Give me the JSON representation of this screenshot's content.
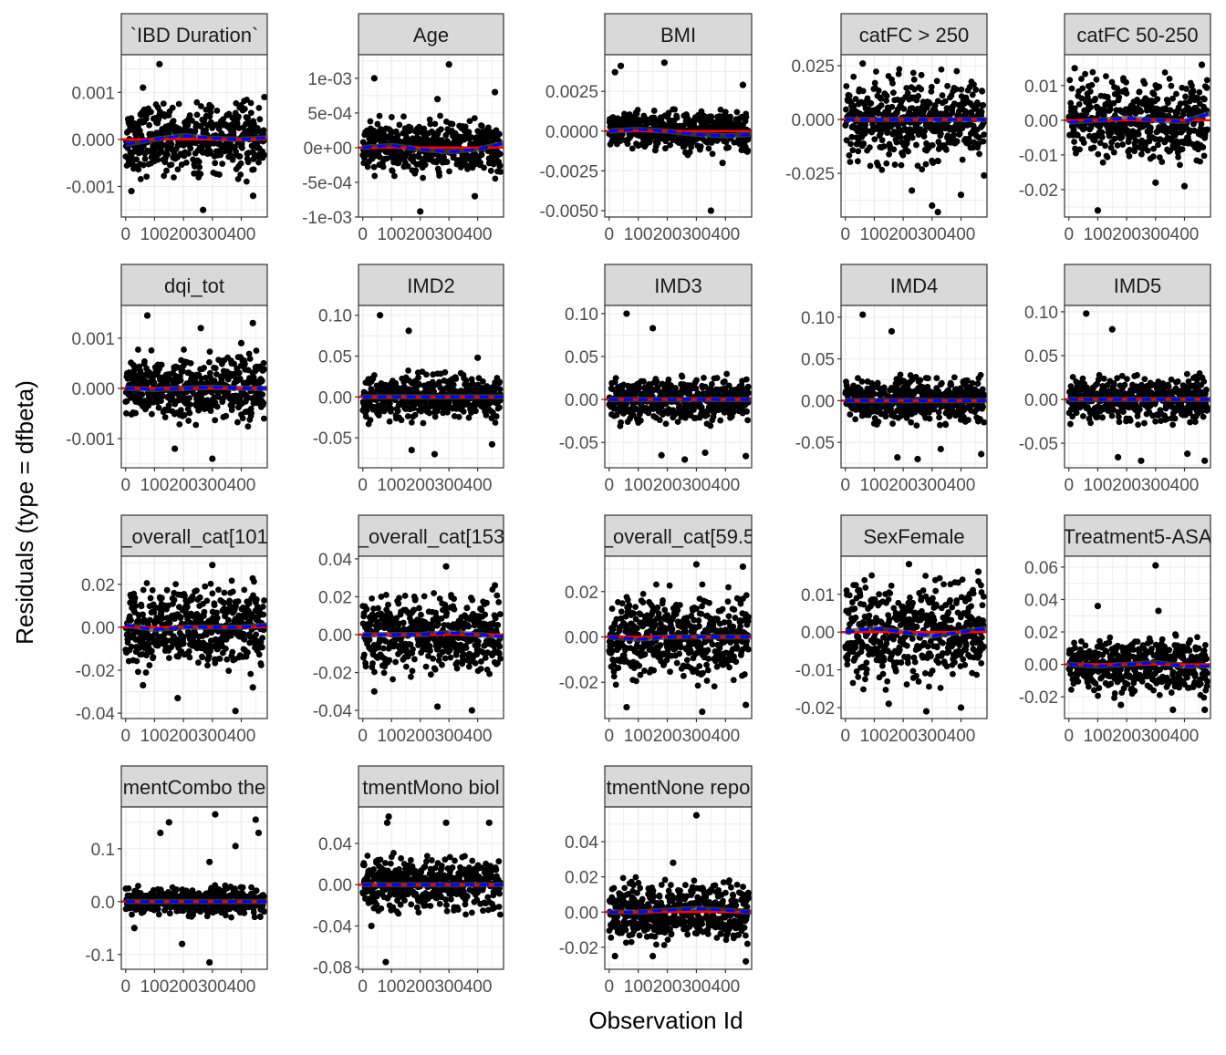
{
  "chart_data": {
    "type": "scatter",
    "xlabel": "Observation Id",
    "ylabel": "Residuals (type = dfbeta)",
    "xlim": [
      -15,
      490
    ],
    "xticks": [
      0,
      100,
      200,
      300,
      400
    ],
    "xtick_labels": [
      "0",
      "100",
      "200",
      "300",
      "400"
    ],
    "n_points": 480,
    "colors": {
      "points": "#000000",
      "zero_line": "#ff0000",
      "smooth": "#0000ff",
      "band": "#444444",
      "strip": "#d9d9d9"
    },
    "panels": [
      {
        "label": "`IBD Duration`",
        "ylim": [
          -0.00165,
          0.0018
        ],
        "ticks": [
          0.001,
          0,
          -0.001
        ],
        "tick_labels": [
          "0.001",
          "0.000",
          "-0.001"
        ],
        "sd": 0.00035,
        "smooth": [
          -0.0001,
          0,
          8e-05,
          2e-05,
          0,
          3e-05
        ],
        "outliers": [
          [
            117,
            0.0016
          ],
          [
            60,
            0.0011
          ],
          [
            441,
            -0.0012
          ],
          [
            268,
            -0.0015
          ],
          [
            20,
            -0.0011
          ],
          [
            480,
            0.0009
          ]
        ]
      },
      {
        "label": "Age",
        "ylim": [
          -0.001,
          0.00134
        ],
        "ticks": [
          0.001,
          0.0005,
          0,
          -0.0005,
          -0.001
        ],
        "tick_labels": [
          "1e-03",
          "5e-04",
          "0e+00",
          "-5e-04",
          "-1e-03"
        ],
        "sd": 0.00018,
        "smooth": [
          0,
          3e-05,
          -2e-05,
          -6e-05,
          -2e-05,
          6e-05
        ],
        "outliers": [
          [
            40,
            0.001
          ],
          [
            300,
            0.0012
          ],
          [
            200,
            -0.00092
          ],
          [
            390,
            -0.0007
          ],
          [
            460,
            0.0008
          ],
          [
            260,
            0.0007
          ]
        ]
      },
      {
        "label": "BMI",
        "ylim": [
          -0.0054,
          0.0048
        ],
        "ticks": [
          0.0025,
          0,
          -0.0025,
          -0.005
        ],
        "tick_labels": [
          "0.0025",
          "0.0000",
          "-0.0025",
          "-0.0050"
        ],
        "sd": 0.0006,
        "smooth": [
          0,
          0.0001,
          0,
          -0.0002,
          -0.0003,
          -0.0002
        ],
        "outliers": [
          [
            190,
            0.0043
          ],
          [
            40,
            0.0041
          ],
          [
            350,
            -0.005
          ],
          [
            460,
            0.0029
          ],
          [
            390,
            -0.002
          ],
          [
            20,
            0.0037
          ]
        ]
      },
      {
        "label": "catFC > 250",
        "ylim": [
          -0.0453,
          0.0301
        ],
        "ticks": [
          0.025,
          0,
          -0.025
        ],
        "tick_labels": [
          "0.025",
          "0.000",
          "-0.025"
        ],
        "sd": 0.009,
        "smooth": [
          0,
          0,
          0,
          0,
          0,
          0
        ],
        "outliers": [
          [
            300,
            -0.04
          ],
          [
            320,
            -0.043
          ],
          [
            400,
            -0.035
          ],
          [
            230,
            -0.033
          ],
          [
            60,
            0.026
          ],
          [
            480,
            -0.026
          ]
        ]
      },
      {
        "label": "catFC 50-250",
        "ylim": [
          -0.0279,
          0.0189
        ],
        "ticks": [
          0.01,
          0,
          -0.01,
          -0.02
        ],
        "tick_labels": [
          "0.01",
          "0.00",
          "-0.01",
          "-0.02"
        ],
        "sd": 0.0055,
        "smooth": [
          -0.0005,
          0,
          0.0005,
          0,
          -0.0003,
          0.002
        ],
        "outliers": [
          [
            100,
            -0.026
          ],
          [
            400,
            -0.019
          ],
          [
            460,
            0.016
          ],
          [
            20,
            0.015
          ],
          [
            300,
            -0.018
          ]
        ]
      },
      {
        "label": "dqi_tot",
        "ylim": [
          -0.00158,
          0.00165
        ],
        "ticks": [
          0.001,
          0,
          -0.001
        ],
        "tick_labels": [
          "0.001",
          "0.000",
          "-0.001"
        ],
        "sd": 0.0003,
        "smooth": [
          0,
          -2e-05,
          0,
          2e-05,
          0,
          0
        ],
        "outliers": [
          [
            75,
            0.00145
          ],
          [
            300,
            -0.0014
          ],
          [
            260,
            0.0012
          ],
          [
            440,
            0.0013
          ],
          [
            170,
            -0.0012
          ],
          [
            400,
            0.0009
          ]
        ]
      },
      {
        "label": "IMD2",
        "ylim": [
          -0.0867,
          0.112
        ],
        "ticks": [
          0.1,
          0.05,
          0,
          -0.05
        ],
        "tick_labels": [
          "0.10",
          "0.05",
          "0.00",
          "-0.05"
        ],
        "sd": 0.013,
        "smooth": [
          0,
          0,
          0,
          0,
          0,
          0
        ],
        "outliers": [
          [
            60,
            0.1
          ],
          [
            160,
            0.081
          ],
          [
            170,
            -0.065
          ],
          [
            250,
            -0.07
          ],
          [
            450,
            -0.058
          ],
          [
            400,
            0.048
          ]
        ]
      },
      {
        "label": "IMD3",
        "ylim": [
          -0.0796,
          0.1095
        ],
        "ticks": [
          0.1,
          0.05,
          0,
          -0.05
        ],
        "tick_labels": [
          "0.10",
          "0.05",
          "0.00",
          "-0.05"
        ],
        "sd": 0.012,
        "smooth": [
          0,
          0,
          0,
          0,
          0,
          0
        ],
        "outliers": [
          [
            60,
            0.1
          ],
          [
            150,
            0.083
          ],
          [
            260,
            -0.07
          ],
          [
            470,
            -0.066
          ],
          [
            330,
            -0.062
          ],
          [
            180,
            -0.065
          ]
        ]
      },
      {
        "label": "IMD4",
        "ylim": [
          -0.0804,
          0.114
        ],
        "ticks": [
          0.1,
          0.05,
          0,
          -0.05
        ],
        "tick_labels": [
          "0.10",
          "0.05",
          "0.00",
          "-0.05"
        ],
        "sd": 0.012,
        "smooth": [
          0,
          0,
          0,
          0,
          0,
          0
        ],
        "outliers": [
          [
            60,
            0.103
          ],
          [
            160,
            0.083
          ],
          [
            250,
            -0.07
          ],
          [
            470,
            -0.064
          ],
          [
            330,
            -0.058
          ],
          [
            180,
            -0.068
          ]
        ]
      },
      {
        "label": "IMD5",
        "ylim": [
          -0.078,
          0.1072
        ],
        "ticks": [
          0.1,
          0.05,
          0,
          -0.05
        ],
        "tick_labels": [
          "0.10",
          "0.05",
          "0.00",
          "-0.05"
        ],
        "sd": 0.012,
        "smooth": [
          0,
          0,
          0,
          0,
          0,
          0
        ],
        "outliers": [
          [
            60,
            0.098
          ],
          [
            150,
            0.08
          ],
          [
            250,
            -0.07
          ],
          [
            470,
            -0.07
          ],
          [
            410,
            -0.062
          ],
          [
            170,
            -0.066
          ]
        ]
      },
      {
        "label": "_overall_cat[101",
        "ylim": [
          -0.0425,
          0.0331
        ],
        "ticks": [
          0.02,
          0,
          -0.02,
          -0.04
        ],
        "tick_labels": [
          "0.02",
          "0.00",
          "-0.02",
          "-0.04"
        ],
        "sd": 0.009,
        "smooth": [
          0.001,
          -0.001,
          0,
          0,
          0,
          0.001
        ],
        "outliers": [
          [
            300,
            0.029
          ],
          [
            380,
            -0.039
          ],
          [
            180,
            -0.033
          ],
          [
            60,
            -0.027
          ],
          [
            440,
            -0.028
          ]
        ]
      },
      {
        "label": "_overall_cat[153",
        "ylim": [
          -0.0443,
          0.0414
        ],
        "ticks": [
          0.04,
          0.02,
          0,
          -0.02,
          -0.04
        ],
        "tick_labels": [
          "0.04",
          "0.02",
          "0.00",
          "-0.02",
          "-0.04"
        ],
        "sd": 0.0095,
        "smooth": [
          0,
          0,
          0,
          0.001,
          0,
          -0.001
        ],
        "outliers": [
          [
            290,
            0.036
          ],
          [
            380,
            -0.04
          ],
          [
            260,
            -0.038
          ],
          [
            460,
            0.026
          ],
          [
            40,
            -0.03
          ]
        ]
      },
      {
        "label": "_overall_cat[59.5",
        "ylim": [
          -0.036,
          0.0356
        ],
        "ticks": [
          0.02,
          0,
          -0.02
        ],
        "tick_labels": [
          "0.02",
          "0.00",
          "-0.02"
        ],
        "sd": 0.009,
        "smooth": [
          0,
          -0.001,
          0,
          0,
          0,
          0
        ],
        "outliers": [
          [
            300,
            0.032
          ],
          [
            460,
            0.031
          ],
          [
            320,
            -0.033
          ],
          [
            60,
            -0.031
          ],
          [
            470,
            -0.03
          ]
        ]
      },
      {
        "label": "SexFemale",
        "ylim": [
          -0.0229,
          0.0201
        ],
        "ticks": [
          0.01,
          0,
          -0.01,
          -0.02
        ],
        "tick_labels": [
          "0.01",
          "0.00",
          "-0.01",
          "-0.02"
        ],
        "sd": 0.006,
        "smooth": [
          0,
          0.001,
          0,
          -0.001,
          0,
          0.001
        ],
        "outliers": [
          [
            220,
            0.018
          ],
          [
            280,
            -0.021
          ],
          [
            400,
            -0.02
          ],
          [
            150,
            -0.019
          ],
          [
            460,
            0.016
          ]
        ]
      },
      {
        "label": "Treatment5-ASA",
        "ylim": [
          -0.0334,
          0.0667
        ],
        "ticks": [
          0.06,
          0.04,
          0.02,
          0,
          -0.02
        ],
        "tick_labels": [
          "0.06",
          "0.04",
          "0.02",
          "0.00",
          "-0.02"
        ],
        "sd": 0.008,
        "smooth": [
          0,
          -0.001,
          0,
          0.001,
          -0.001,
          -0.001
        ],
        "outliers": [
          [
            300,
            0.061
          ],
          [
            100,
            0.036
          ],
          [
            310,
            0.033
          ],
          [
            360,
            -0.028
          ],
          [
            470,
            -0.028
          ],
          [
            180,
            -0.025
          ]
        ]
      },
      {
        "label": "mentCombo the",
        "ylim": [
          -0.128,
          0.179
        ],
        "ticks": [
          0.1,
          0,
          -0.1
        ],
        "tick_labels": [
          "0.1",
          "0.0",
          "-0.1"
        ],
        "sd": 0.012,
        "smooth": [
          0,
          0,
          0,
          0,
          0,
          0
        ],
        "outliers": [
          [
            150,
            0.15
          ],
          [
            120,
            0.13
          ],
          [
            310,
            0.165
          ],
          [
            450,
            0.155
          ],
          [
            380,
            0.105
          ],
          [
            290,
            0.075
          ],
          [
            195,
            -0.08
          ],
          [
            290,
            -0.115
          ],
          [
            460,
            0.13
          ],
          [
            30,
            -0.05
          ]
        ]
      },
      {
        "label": "tmentMono biol",
        "ylim": [
          -0.082,
          0.0753
        ],
        "ticks": [
          0.04,
          0,
          -0.04,
          -0.08
        ],
        "tick_labels": [
          "0.04",
          "0.00",
          "-0.04",
          "-0.08"
        ],
        "sd": 0.012,
        "smooth": [
          0,
          0,
          0,
          0,
          0,
          0
        ],
        "outliers": [
          [
            80,
            -0.075
          ],
          [
            90,
            0.066
          ],
          [
            85,
            0.06
          ],
          [
            290,
            0.06
          ],
          [
            440,
            0.06
          ],
          [
            30,
            -0.04
          ]
        ]
      },
      {
        "label": "tmentNone repo",
        "ylim": [
          -0.0325,
          0.0597
        ],
        "ticks": [
          0.04,
          0.02,
          0,
          -0.02
        ],
        "tick_labels": [
          "0.04",
          "0.02",
          "0.00",
          "-0.02"
        ],
        "sd": 0.008,
        "smooth": [
          0,
          0,
          0.001,
          0.002,
          0.001,
          0
        ],
        "outliers": [
          [
            300,
            0.055
          ],
          [
            20,
            -0.025
          ],
          [
            150,
            -0.025
          ],
          [
            470,
            -0.028
          ],
          [
            410,
            0.017
          ],
          [
            220,
            0.028
          ]
        ]
      }
    ]
  }
}
